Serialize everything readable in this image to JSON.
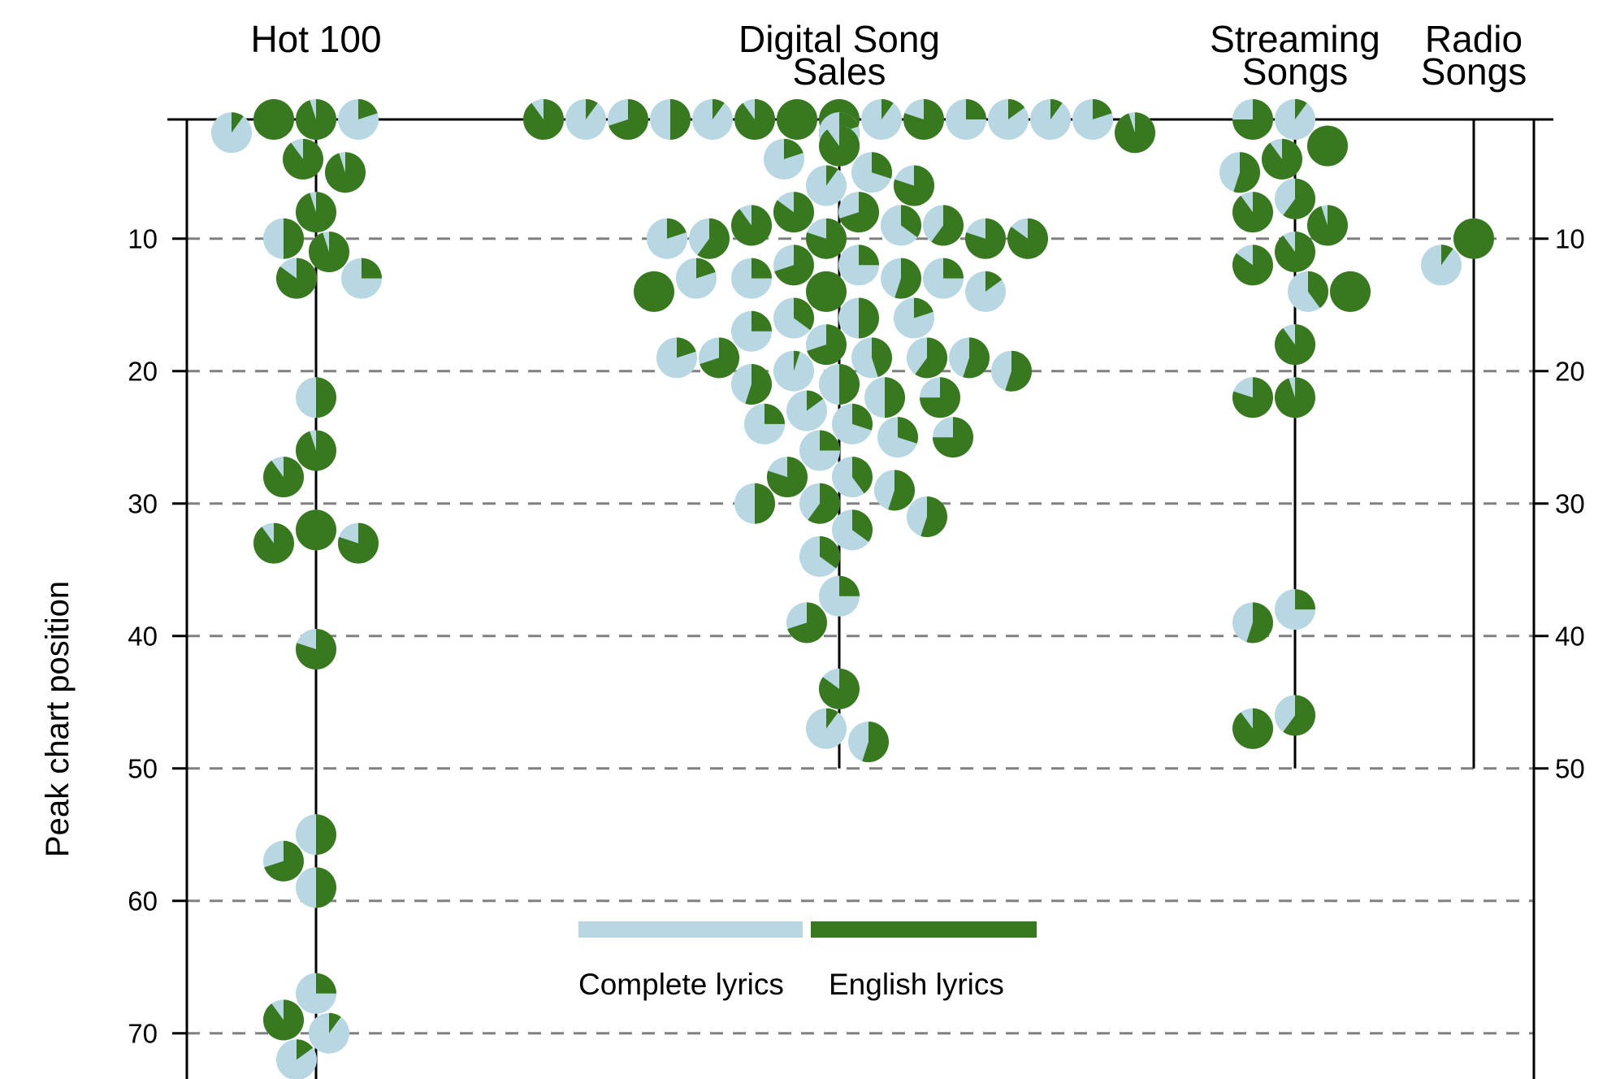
{
  "chart_data": {
    "type": "scatter",
    "ylabel": "Peak chart position",
    "ylim": [
      0,
      75
    ],
    "y_inverted": true,
    "yticks": [
      10,
      20,
      30,
      40,
      50,
      60,
      70
    ],
    "grid": "dashed horizontal",
    "marker": "pie (share of Complete lyrics vs English lyrics)",
    "legend": {
      "position": "bottom-center",
      "entries": [
        {
          "label": "Complete lyrics",
          "color": "#b7d7e2"
        },
        {
          "label": "English lyrics",
          "color": "#38791f"
        }
      ]
    },
    "colors": {
      "complete": "#b7d7e2",
      "english": "#38791f",
      "grid": "#808080"
    },
    "series": [
      {
        "name": "Hot 100",
        "name_lines": [
          "Hot 100"
        ],
        "range": [
          1,
          72
        ],
        "points": [
          {
            "y": 1,
            "english": 0.95
          },
          {
            "y": 1,
            "english": 1.0
          },
          {
            "y": 1,
            "english": 0.2
          },
          {
            "y": 2,
            "english": 0.1
          },
          {
            "y": 4,
            "english": 0.9
          },
          {
            "y": 5,
            "english": 0.95
          },
          {
            "y": 8,
            "english": 0.95
          },
          {
            "y": 10,
            "english": 0.5
          },
          {
            "y": 11,
            "english": 0.95
          },
          {
            "y": 13,
            "english": 0.85
          },
          {
            "y": 13,
            "english": 0.25
          },
          {
            "y": 22,
            "english": 0.5
          },
          {
            "y": 26,
            "english": 0.95
          },
          {
            "y": 28,
            "english": 0.9
          },
          {
            "y": 32,
            "english": 1.0
          },
          {
            "y": 33,
            "english": 0.9
          },
          {
            "y": 33,
            "english": 0.8
          },
          {
            "y": 41,
            "english": 0.8
          },
          {
            "y": 55,
            "english": 0.5
          },
          {
            "y": 57,
            "english": 0.7
          },
          {
            "y": 59,
            "english": 0.5
          },
          {
            "y": 67,
            "english": 0.25
          },
          {
            "y": 69,
            "english": 0.9
          },
          {
            "y": 70,
            "english": 0.1
          },
          {
            "y": 72,
            "english": 0.15
          }
        ]
      },
      {
        "name": "Digital Song Sales",
        "name_lines": [
          "Digital Song",
          "Sales"
        ],
        "range": [
          1,
          50
        ],
        "points": [
          {
            "y": 1,
            "english": 1.0
          },
          {
            "y": 1,
            "english": 1.0
          },
          {
            "y": 1,
            "english": 0.1
          },
          {
            "y": 1,
            "english": 0.9
          },
          {
            "y": 1,
            "english": 0.8
          },
          {
            "y": 1,
            "english": 0.1
          },
          {
            "y": 1,
            "english": 0.25
          },
          {
            "y": 1,
            "english": 0.5
          },
          {
            "y": 1,
            "english": 0.15
          },
          {
            "y": 1,
            "english": 0.7
          },
          {
            "y": 1,
            "english": 0.1
          },
          {
            "y": 1,
            "english": 0.1
          },
          {
            "y": 1,
            "english": 0.2
          },
          {
            "y": 1,
            "english": 0.9
          },
          {
            "y": 2,
            "english": 0.95
          },
          {
            "y": 2,
            "english": 0.75
          },
          {
            "y": 2,
            "english": 0.8
          },
          {
            "y": 2,
            "english": 0.2
          },
          {
            "y": 3,
            "english": 0.5
          },
          {
            "y": 3,
            "english": 0.6
          },
          {
            "y": 3,
            "english": 0.9
          },
          {
            "y": 4,
            "english": 0.2
          },
          {
            "y": 5,
            "english": 0.3
          },
          {
            "y": 6,
            "english": 0.1
          },
          {
            "y": 6,
            "english": 0.8
          },
          {
            "y": 8,
            "english": 0.7
          },
          {
            "y": 8,
            "english": 0.85
          },
          {
            "y": 9,
            "english": 0.35
          },
          {
            "y": 9,
            "english": 0.9
          },
          {
            "y": 9,
            "english": 0.6
          },
          {
            "y": 10,
            "english": 0.8
          },
          {
            "y": 10,
            "english": 0.6
          },
          {
            "y": 10,
            "english": 0.8
          },
          {
            "y": 10,
            "english": 0.2
          },
          {
            "y": 10,
            "english": 0.85
          },
          {
            "y": 12,
            "english": 0.25
          },
          {
            "y": 12,
            "english": 0.7
          },
          {
            "y": 13,
            "english": 0.55
          },
          {
            "y": 13,
            "english": 0.25
          },
          {
            "y": 13,
            "english": 0.25
          },
          {
            "y": 13,
            "english": 0.2
          },
          {
            "y": 14,
            "english": 1.0
          },
          {
            "y": 14,
            "english": 0.15
          },
          {
            "y": 14,
            "english": 1.0
          },
          {
            "y": 16,
            "english": 0.5
          },
          {
            "y": 16,
            "english": 0.35
          },
          {
            "y": 16,
            "english": 0.2
          },
          {
            "y": 17,
            "english": 0.25
          },
          {
            "y": 18,
            "english": 0.7
          },
          {
            "y": 19,
            "english": 0.45
          },
          {
            "y": 19,
            "english": 0.6
          },
          {
            "y": 19,
            "english": 0.7
          },
          {
            "y": 19,
            "english": 0.55
          },
          {
            "y": 19,
            "english": 0.2
          },
          {
            "y": 20,
            "english": 0.05
          },
          {
            "y": 20,
            "english": 0.55
          },
          {
            "y": 21,
            "english": 0.5
          },
          {
            "y": 21,
            "english": 0.55
          },
          {
            "y": 22,
            "english": 0.5
          },
          {
            "y": 22,
            "english": 0.75
          },
          {
            "y": 23,
            "english": 0.15
          },
          {
            "y": 24,
            "english": 0.3
          },
          {
            "y": 24,
            "english": 0.25
          },
          {
            "y": 25,
            "english": 0.3
          },
          {
            "y": 25,
            "english": 0.75
          },
          {
            "y": 26,
            "english": 0.25
          },
          {
            "y": 28,
            "english": 0.4
          },
          {
            "y": 28,
            "english": 0.8
          },
          {
            "y": 29,
            "english": 0.55
          },
          {
            "y": 30,
            "english": 0.6
          },
          {
            "y": 30,
            "english": 0.5
          },
          {
            "y": 31,
            "english": 0.55
          },
          {
            "y": 32,
            "english": 0.35
          },
          {
            "y": 34,
            "english": 0.35
          },
          {
            "y": 37,
            "english": 0.25
          },
          {
            "y": 39,
            "english": 0.7
          },
          {
            "y": 44,
            "english": 0.85
          },
          {
            "y": 47,
            "english": 0.1
          },
          {
            "y": 48,
            "english": 0.55
          }
        ]
      },
      {
        "name": "Streaming Songs",
        "name_lines": [
          "Streaming",
          "Songs"
        ],
        "range": [
          1,
          50
        ],
        "points": [
          {
            "y": 1,
            "english": 0.1
          },
          {
            "y": 1,
            "english": 0.75
          },
          {
            "y": 3,
            "english": 1.0
          },
          {
            "y": 4,
            "english": 0.9
          },
          {
            "y": 5,
            "english": 0.55
          },
          {
            "y": 7,
            "english": 0.6
          },
          {
            "y": 8,
            "english": 0.9
          },
          {
            "y": 9,
            "english": 0.95
          },
          {
            "y": 11,
            "english": 0.9
          },
          {
            "y": 12,
            "english": 0.85
          },
          {
            "y": 14,
            "english": 0.4
          },
          {
            "y": 14,
            "english": 1.0
          },
          {
            "y": 18,
            "english": 0.9
          },
          {
            "y": 22,
            "english": 0.95
          },
          {
            "y": 22,
            "english": 0.8
          },
          {
            "y": 38,
            "english": 0.25
          },
          {
            "y": 39,
            "english": 0.55
          },
          {
            "y": 46,
            "english": 0.6
          },
          {
            "y": 47,
            "english": 0.9
          }
        ]
      },
      {
        "name": "Radio Songs",
        "name_lines": [
          "Radio",
          "Songs"
        ],
        "range": [
          1,
          50
        ],
        "points": [
          {
            "y": 10,
            "english": 1.0
          },
          {
            "y": 12,
            "english": 0.1
          }
        ]
      }
    ]
  }
}
